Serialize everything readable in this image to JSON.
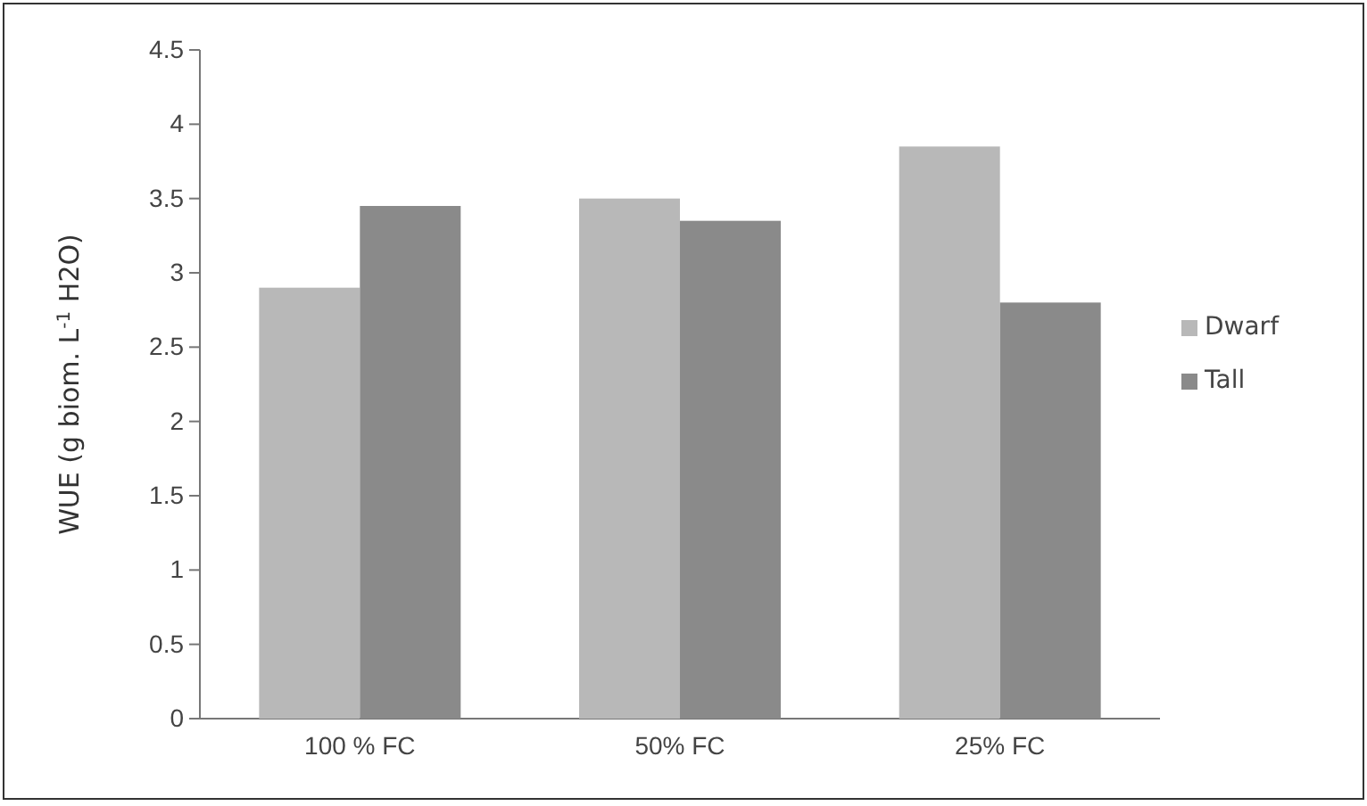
{
  "chart_data": {
    "type": "bar",
    "ylabel": "WUE (g biom. L$^{-1}$ H2O)",
    "categories": [
      "100 % FC",
      "50% FC",
      "25% FC"
    ],
    "series": [
      {
        "name": "Dwarf",
        "color": "#b8b8b8",
        "values": [
          2.9,
          3.5,
          3.85
        ]
      },
      {
        "name": "Tall",
        "color": "#8a8a8a",
        "values": [
          3.45,
          3.35,
          2.8
        ]
      }
    ],
    "ylim": [
      0,
      4.5
    ],
    "yticks": [
      0,
      0.5,
      1,
      1.5,
      2,
      2.5,
      3,
      3.5,
      4,
      4.5
    ],
    "grid": false,
    "legend": "right"
  }
}
